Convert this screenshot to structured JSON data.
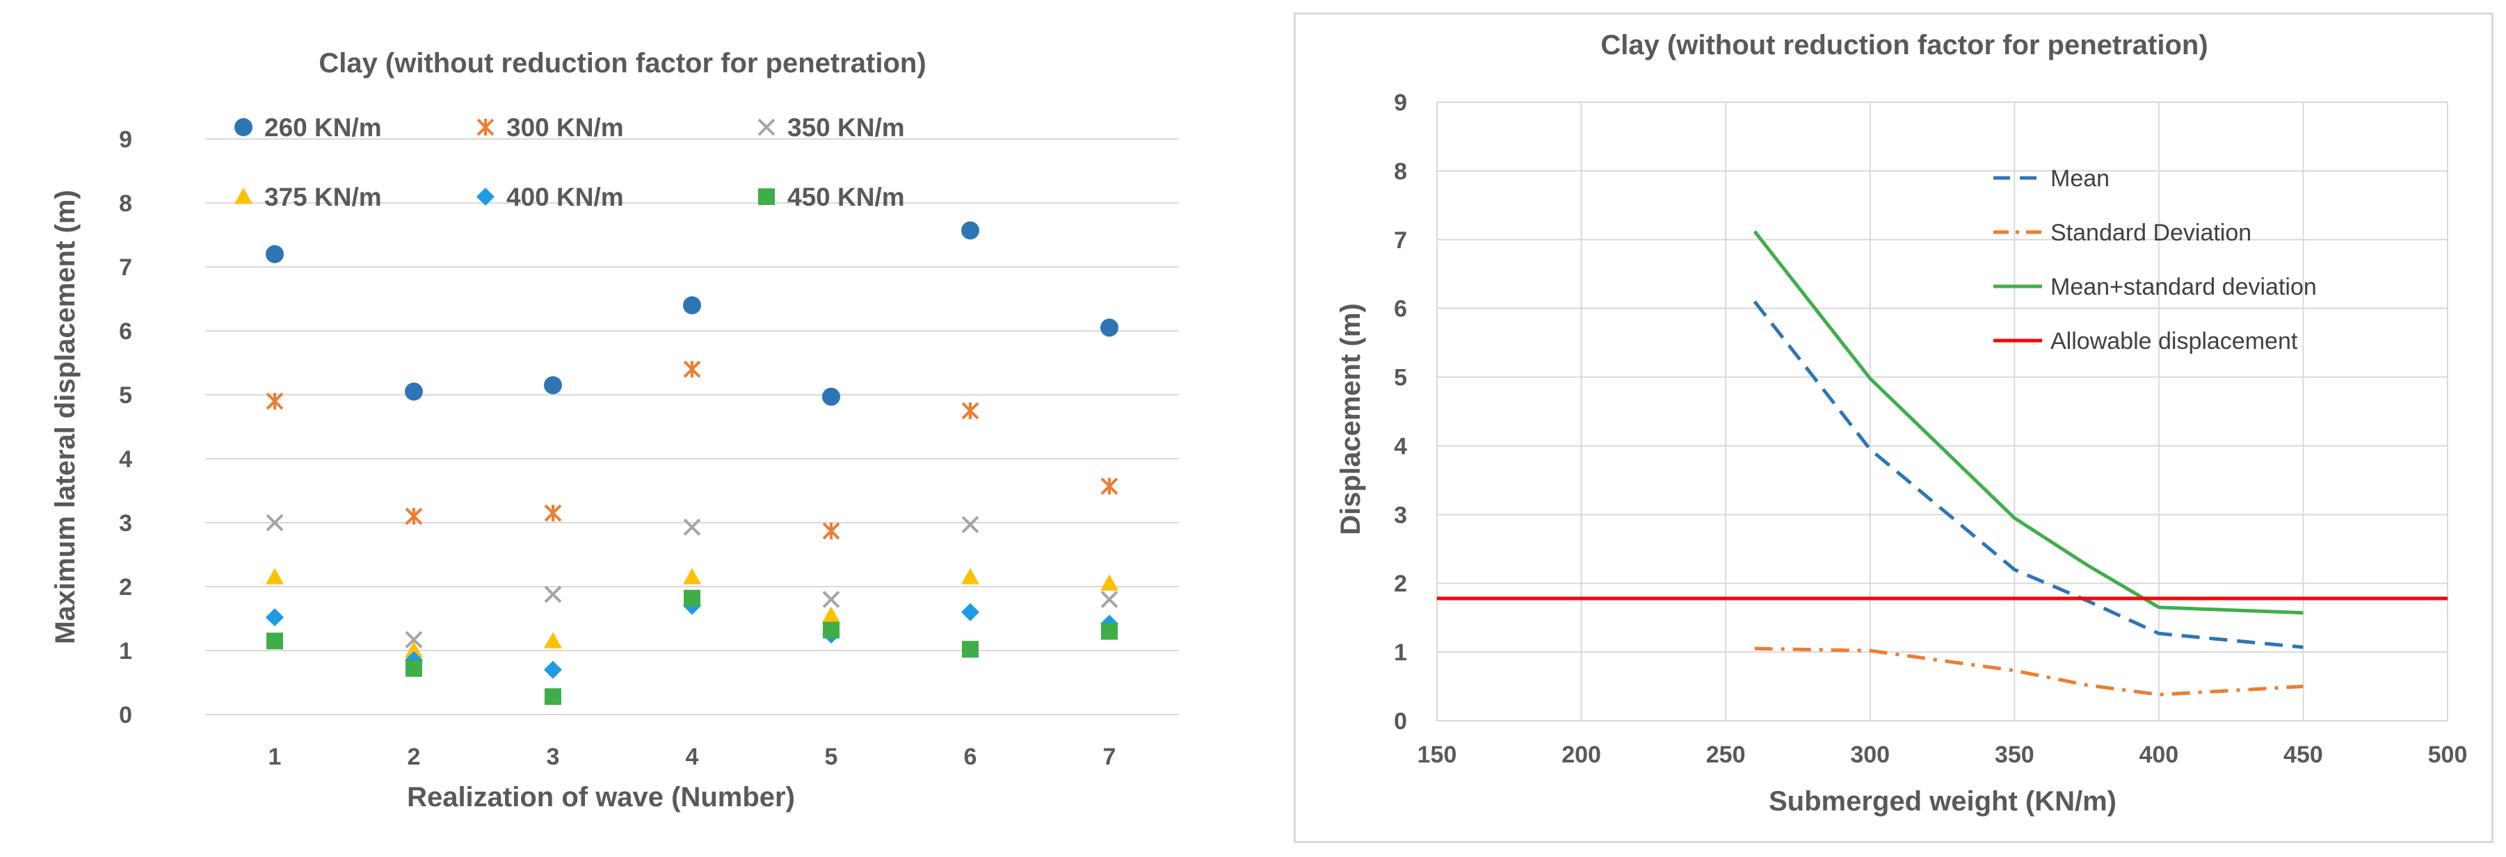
{
  "chart_data": [
    {
      "type": "scatter",
      "title": "Clay (without reduction factor for penetration)",
      "xlabel": "Realization of wave (Number)",
      "ylabel": "Maximum lateral displacement (m)",
      "x": [
        1,
        2,
        3,
        4,
        5,
        6,
        7
      ],
      "xticks": [
        "1",
        "2",
        "3",
        "4",
        "5",
        "6",
        "7"
      ],
      "yticks": [
        "0",
        "1",
        "2",
        "3",
        "4",
        "5",
        "6",
        "7",
        "8",
        "9"
      ],
      "ylim": [
        0,
        9
      ],
      "legend_position": "top",
      "series": [
        {
          "name": "260 KN/m",
          "marker": "circle",
          "color": "#2e75b6",
          "values": [
            7.2,
            5.05,
            5.15,
            6.4,
            4.97,
            7.57,
            6.05
          ]
        },
        {
          "name": "300 KN/m",
          "marker": "asterisk",
          "color": "#ed7d31",
          "values": [
            4.9,
            3.1,
            3.15,
            5.4,
            2.87,
            4.75,
            3.57
          ]
        },
        {
          "name": "350 KN/m",
          "marker": "x",
          "color": "#a5a5a5",
          "values": [
            3.0,
            1.17,
            1.88,
            2.93,
            1.8,
            2.97,
            1.8
          ]
        },
        {
          "name": "375 KN/m",
          "marker": "triangle",
          "color": "#ffc000",
          "values": [
            2.15,
            1.0,
            1.15,
            2.15,
            1.55,
            2.15,
            2.05
          ]
        },
        {
          "name": "400 KN/m",
          "marker": "diamond",
          "color": "#1e9be6",
          "values": [
            1.52,
            0.85,
            0.7,
            1.7,
            1.25,
            1.6,
            1.42
          ]
        },
        {
          "name": "450 KN/m",
          "marker": "square",
          "color": "#3fae49",
          "values": [
            1.15,
            0.72,
            0.28,
            1.82,
            1.32,
            1.02,
            1.3
          ]
        }
      ]
    },
    {
      "type": "line",
      "title": "Clay (without reduction factor for penetration)",
      "xlabel": "Submerged weight (KN/m)",
      "ylabel": "Displacement (m)",
      "xlim": [
        150,
        500
      ],
      "ylim": [
        0,
        9
      ],
      "xticks": [
        "150",
        "200",
        "250",
        "300",
        "350",
        "400",
        "450",
        "500"
      ],
      "yticks": [
        "0",
        "1",
        "2",
        "3",
        "4",
        "5",
        "6",
        "7",
        "8",
        "9"
      ],
      "legend_position": "inside center",
      "series": [
        {
          "name": "Mean",
          "style": "dashed",
          "color": "#2e75b6",
          "x": [
            260,
            300,
            350,
            375,
            400,
            450
          ],
          "values": [
            6.1,
            3.95,
            2.2,
            1.75,
            1.27,
            1.07
          ]
        },
        {
          "name": "Standard Deviation",
          "style": "dashdot",
          "color": "#ed7d31",
          "x": [
            260,
            300,
            350,
            375,
            400,
            450
          ],
          "values": [
            1.05,
            1.02,
            0.73,
            0.52,
            0.38,
            0.5
          ]
        },
        {
          "name": "Mean+standard deviation",
          "style": "solid",
          "color": "#3fae49",
          "x": [
            260,
            300,
            350,
            375,
            400,
            450
          ],
          "values": [
            7.12,
            4.98,
            2.95,
            2.27,
            1.65,
            1.57
          ]
        },
        {
          "name": "Allowable displacement",
          "style": "solid",
          "color": "#ff0000",
          "x": [
            150,
            500
          ],
          "values": [
            1.78,
            1.78
          ]
        }
      ]
    }
  ]
}
